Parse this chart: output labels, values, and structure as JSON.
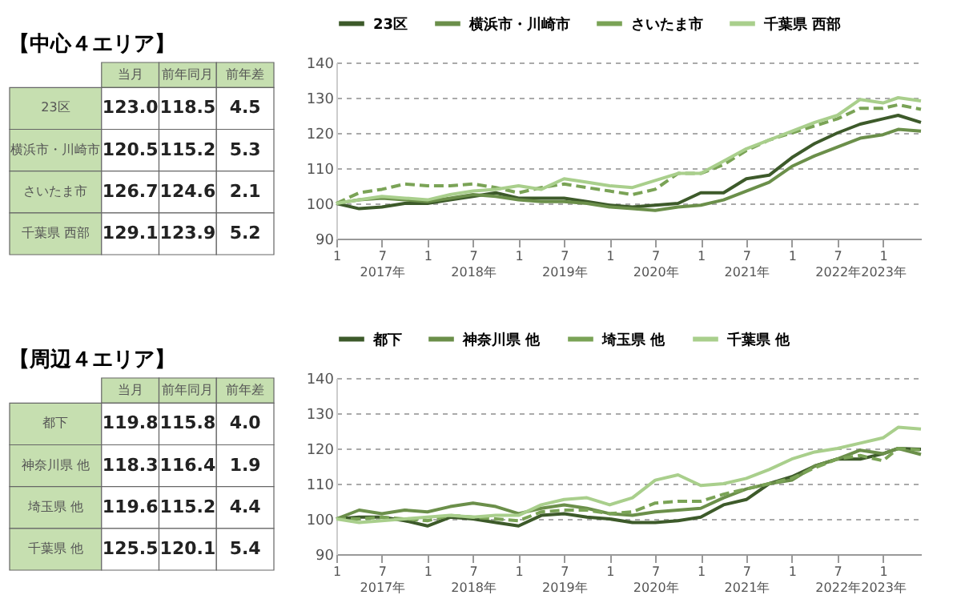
{
  "chart_data": [
    {
      "type": "other",
      "title": "【中心４エリア】",
      "categories": [
        "当月",
        "前年同月",
        "前年差"
      ],
      "y_categories": [
        "23区",
        "横浜市・川崎市",
        "さいたま市",
        "千葉県 西部"
      ],
      "cell_labels": [
        [
          "123.0",
          "118.5",
          "4.5"
        ],
        [
          "120.5",
          "115.2",
          "5.3"
        ],
        [
          "126.7",
          "124.6",
          "2.1"
        ],
        [
          "129.1",
          "123.9",
          "5.2"
        ]
      ]
    },
    {
      "type": "line",
      "legend": "top",
      "grid": "y",
      "ylim": [
        90,
        140
      ],
      "yticks": [
        90,
        100,
        110,
        120,
        130,
        140
      ],
      "xlim": [
        "2017-01",
        "2023-06"
      ],
      "xticks": [
        {
          "value": "2017-01",
          "label": "1"
        },
        {
          "value": "2017-07",
          "label": "7\n2017年"
        },
        {
          "value": "2018-01",
          "label": "1"
        },
        {
          "value": "2018-07",
          "label": "7\n2018年"
        },
        {
          "value": "2019-01",
          "label": "1"
        },
        {
          "value": "2019-07",
          "label": "7\n2019年"
        },
        {
          "value": "2020-01",
          "label": "1"
        },
        {
          "value": "2020-07",
          "label": "7\n2020年"
        },
        {
          "value": "2021-01",
          "label": "1"
        },
        {
          "value": "2021-07",
          "label": "7\n2021年"
        },
        {
          "value": "2022-01",
          "label": "1"
        },
        {
          "value": "2022-07",
          "label": "7\n2022年"
        },
        {
          "value": "2023-01",
          "label": "1\n2023年"
        }
      ],
      "x": [
        "2017-01",
        "2017-04",
        "2017-07",
        "2017-10",
        "2018-01",
        "2018-04",
        "2018-07",
        "2018-10",
        "2019-01",
        "2019-04",
        "2019-07",
        "2019-10",
        "2020-01",
        "2020-04",
        "2020-07",
        "2020-10",
        "2021-01",
        "2021-04",
        "2021-07",
        "2021-10",
        "2022-01",
        "2022-04",
        "2022-07",
        "2022-10",
        "2023-01",
        "2023-03",
        "2023-06"
      ],
      "series": [
        {
          "name": "23区",
          "color": "#3d5a2a",
          "line_style": "solid",
          "values": [
            100,
            98.5,
            99,
            100,
            100,
            101,
            102,
            103,
            101.5,
            101.5,
            101.5,
            100.5,
            99.5,
            99,
            99.5,
            100,
            103,
            103,
            107,
            108,
            113,
            117,
            120,
            122.5,
            124,
            125,
            123
          ]
        },
        {
          "name": "横浜市・川崎市",
          "color": "#6b8f4a",
          "line_style": "solid",
          "values": [
            100,
            101,
            101.5,
            101,
            100.5,
            101.5,
            102.5,
            102,
            101,
            100.5,
            100.5,
            100,
            99,
            98.5,
            98,
            99,
            99.5,
            101,
            103.5,
            106,
            110.5,
            113.5,
            116,
            118.5,
            119.5,
            121,
            120.5
          ]
        },
        {
          "name": "さいたま市",
          "color": "#7aa356",
          "line_style": "dashed",
          "values": [
            100,
            103,
            104,
            105.5,
            105,
            105,
            105.5,
            104.5,
            103,
            104.5,
            105.5,
            104.5,
            103.5,
            102.5,
            104,
            108.5,
            108.5,
            111,
            115,
            118,
            120,
            122,
            124,
            127,
            127,
            128,
            126.7
          ]
        },
        {
          "name": "千葉県 西部",
          "color": "#a9cf8c",
          "line_style": "solid",
          "values": [
            100,
            101,
            102,
            101.5,
            101,
            102.5,
            103.5,
            104,
            105,
            104,
            107,
            106,
            105,
            104.5,
            106.5,
            108.5,
            108.5,
            112,
            115.5,
            118,
            120.5,
            123,
            125,
            129.5,
            128.5,
            130,
            129.1
          ]
        }
      ]
    },
    {
      "type": "other",
      "title": "【周辺４エリア】",
      "categories": [
        "当月",
        "前年同月",
        "前年差"
      ],
      "y_categories": [
        "都下",
        "神奈川県 他",
        "埼玉県 他",
        "千葉県 他"
      ],
      "cell_labels": [
        [
          "119.8",
          "115.8",
          "4.0"
        ],
        [
          "118.3",
          "116.4",
          "1.9"
        ],
        [
          "119.6",
          "115.2",
          "4.4"
        ],
        [
          "125.5",
          "120.1",
          "5.4"
        ]
      ]
    },
    {
      "type": "line",
      "legend": "top",
      "grid": "y",
      "ylim": [
        90,
        140
      ],
      "yticks": [
        90,
        100,
        110,
        120,
        130,
        140
      ],
      "xlim": [
        "2017-01",
        "2023-06"
      ],
      "xticks": [
        {
          "value": "2017-01",
          "label": "1"
        },
        {
          "value": "2017-07",
          "label": "7\n2017年"
        },
        {
          "value": "2018-01",
          "label": "1"
        },
        {
          "value": "2018-07",
          "label": "7\n2018年"
        },
        {
          "value": "2019-01",
          "label": "1"
        },
        {
          "value": "2019-07",
          "label": "7\n2019年"
        },
        {
          "value": "2020-01",
          "label": "1"
        },
        {
          "value": "2020-07",
          "label": "7\n2020年"
        },
        {
          "value": "2021-01",
          "label": "1"
        },
        {
          "value": "2021-07",
          "label": "7\n2021年"
        },
        {
          "value": "2022-01",
          "label": "1"
        },
        {
          "value": "2022-07",
          "label": "7\n2022年"
        },
        {
          "value": "2023-01",
          "label": "1\n2023年"
        }
      ],
      "x": [
        "2017-01",
        "2017-04",
        "2017-07",
        "2017-10",
        "2018-01",
        "2018-04",
        "2018-07",
        "2018-10",
        "2019-01",
        "2019-04",
        "2019-07",
        "2019-10",
        "2020-01",
        "2020-04",
        "2020-07",
        "2020-10",
        "2021-01",
        "2021-04",
        "2021-07",
        "2021-10",
        "2022-01",
        "2022-04",
        "2022-07",
        "2022-10",
        "2023-01",
        "2023-03",
        "2023-06"
      ],
      "series": [
        {
          "name": "都下",
          "color": "#3d5a2a",
          "line_style": "solid",
          "values": [
            100,
            100.5,
            100.5,
            99.5,
            98,
            100.5,
            100,
            99,
            98,
            101,
            101.5,
            100.5,
            100,
            99,
            99,
            99.5,
            100.5,
            104,
            105.5,
            110,
            112,
            115,
            117,
            117,
            118.5,
            120,
            119.8
          ]
        },
        {
          "name": "神奈川県 他",
          "color": "#6b8f4a",
          "line_style": "solid",
          "values": [
            100,
            102.5,
            101.5,
            102.5,
            102,
            103.5,
            104.5,
            103.5,
            101.5,
            103,
            104,
            103,
            101.5,
            101,
            102,
            102.5,
            103,
            106,
            108.5,
            110,
            111,
            115,
            117,
            119.5,
            118.5,
            120,
            118.3
          ]
        },
        {
          "name": "埼玉県 他",
          "color": "#7aa356",
          "line_style": "dashed",
          "values": [
            100,
            100,
            100.5,
            100,
            99.5,
            101,
            100.5,
            100,
            99.5,
            102,
            102.5,
            102.5,
            101.5,
            102,
            104.5,
            105,
            105,
            107,
            108.5,
            110,
            111.5,
            114.5,
            117,
            118,
            116.5,
            120,
            119.6
          ]
        },
        {
          "name": "千葉県 他",
          "color": "#a9cf8c",
          "line_style": "solid",
          "values": [
            100,
            99,
            99.5,
            100,
            100.5,
            101,
            100.5,
            101,
            101,
            104,
            105.5,
            106,
            104,
            106,
            111,
            112.5,
            109.5,
            110,
            111.5,
            114,
            117,
            119,
            120,
            121.5,
            123,
            126,
            125.5
          ]
        }
      ]
    }
  ]
}
